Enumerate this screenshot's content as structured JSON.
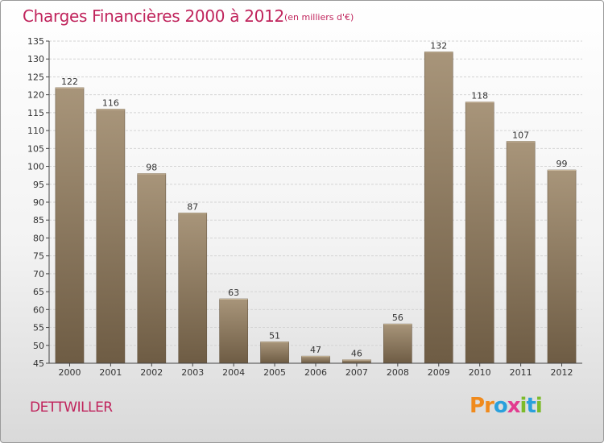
{
  "header": {
    "title": "Charges Financières 2000 à 2012",
    "subtitle": "(en milliers d'€)"
  },
  "footer": {
    "city": "DETTWILLER",
    "brand": "Proxiti",
    "brand_letters": [
      {
        "ch": "P",
        "color": "#f08a1c"
      },
      {
        "ch": "r",
        "color": "#f08a1c"
      },
      {
        "ch": "o",
        "color": "#2aa0dc"
      },
      {
        "ch": "x",
        "color": "#e23b8f"
      },
      {
        "ch": "i",
        "color": "#7cbb2a"
      },
      {
        "ch": "t",
        "color": "#2aa0dc"
      },
      {
        "ch": "i",
        "color": "#7cbb2a"
      }
    ]
  },
  "colors": {
    "accent": "#c0245c",
    "bar_top": "#a8957a",
    "bar_bottom": "#6e5c44"
  },
  "chart_data": {
    "type": "bar",
    "title": "Charges Financières 2000 à 2012",
    "subtitle": "(en milliers d'€)",
    "categories": [
      "2000",
      "2001",
      "2002",
      "2003",
      "2004",
      "2005",
      "2006",
      "2007",
      "2008",
      "2009",
      "2010",
      "2011",
      "2012"
    ],
    "values": [
      122,
      116,
      98,
      87,
      63,
      51,
      47,
      46,
      56,
      132,
      118,
      107,
      99
    ],
    "ylim": [
      45,
      135
    ],
    "yticks": [
      45,
      50,
      55,
      60,
      65,
      70,
      75,
      80,
      85,
      90,
      95,
      100,
      105,
      110,
      115,
      120,
      125,
      130,
      135
    ],
    "grid": true,
    "legend": "none"
  }
}
